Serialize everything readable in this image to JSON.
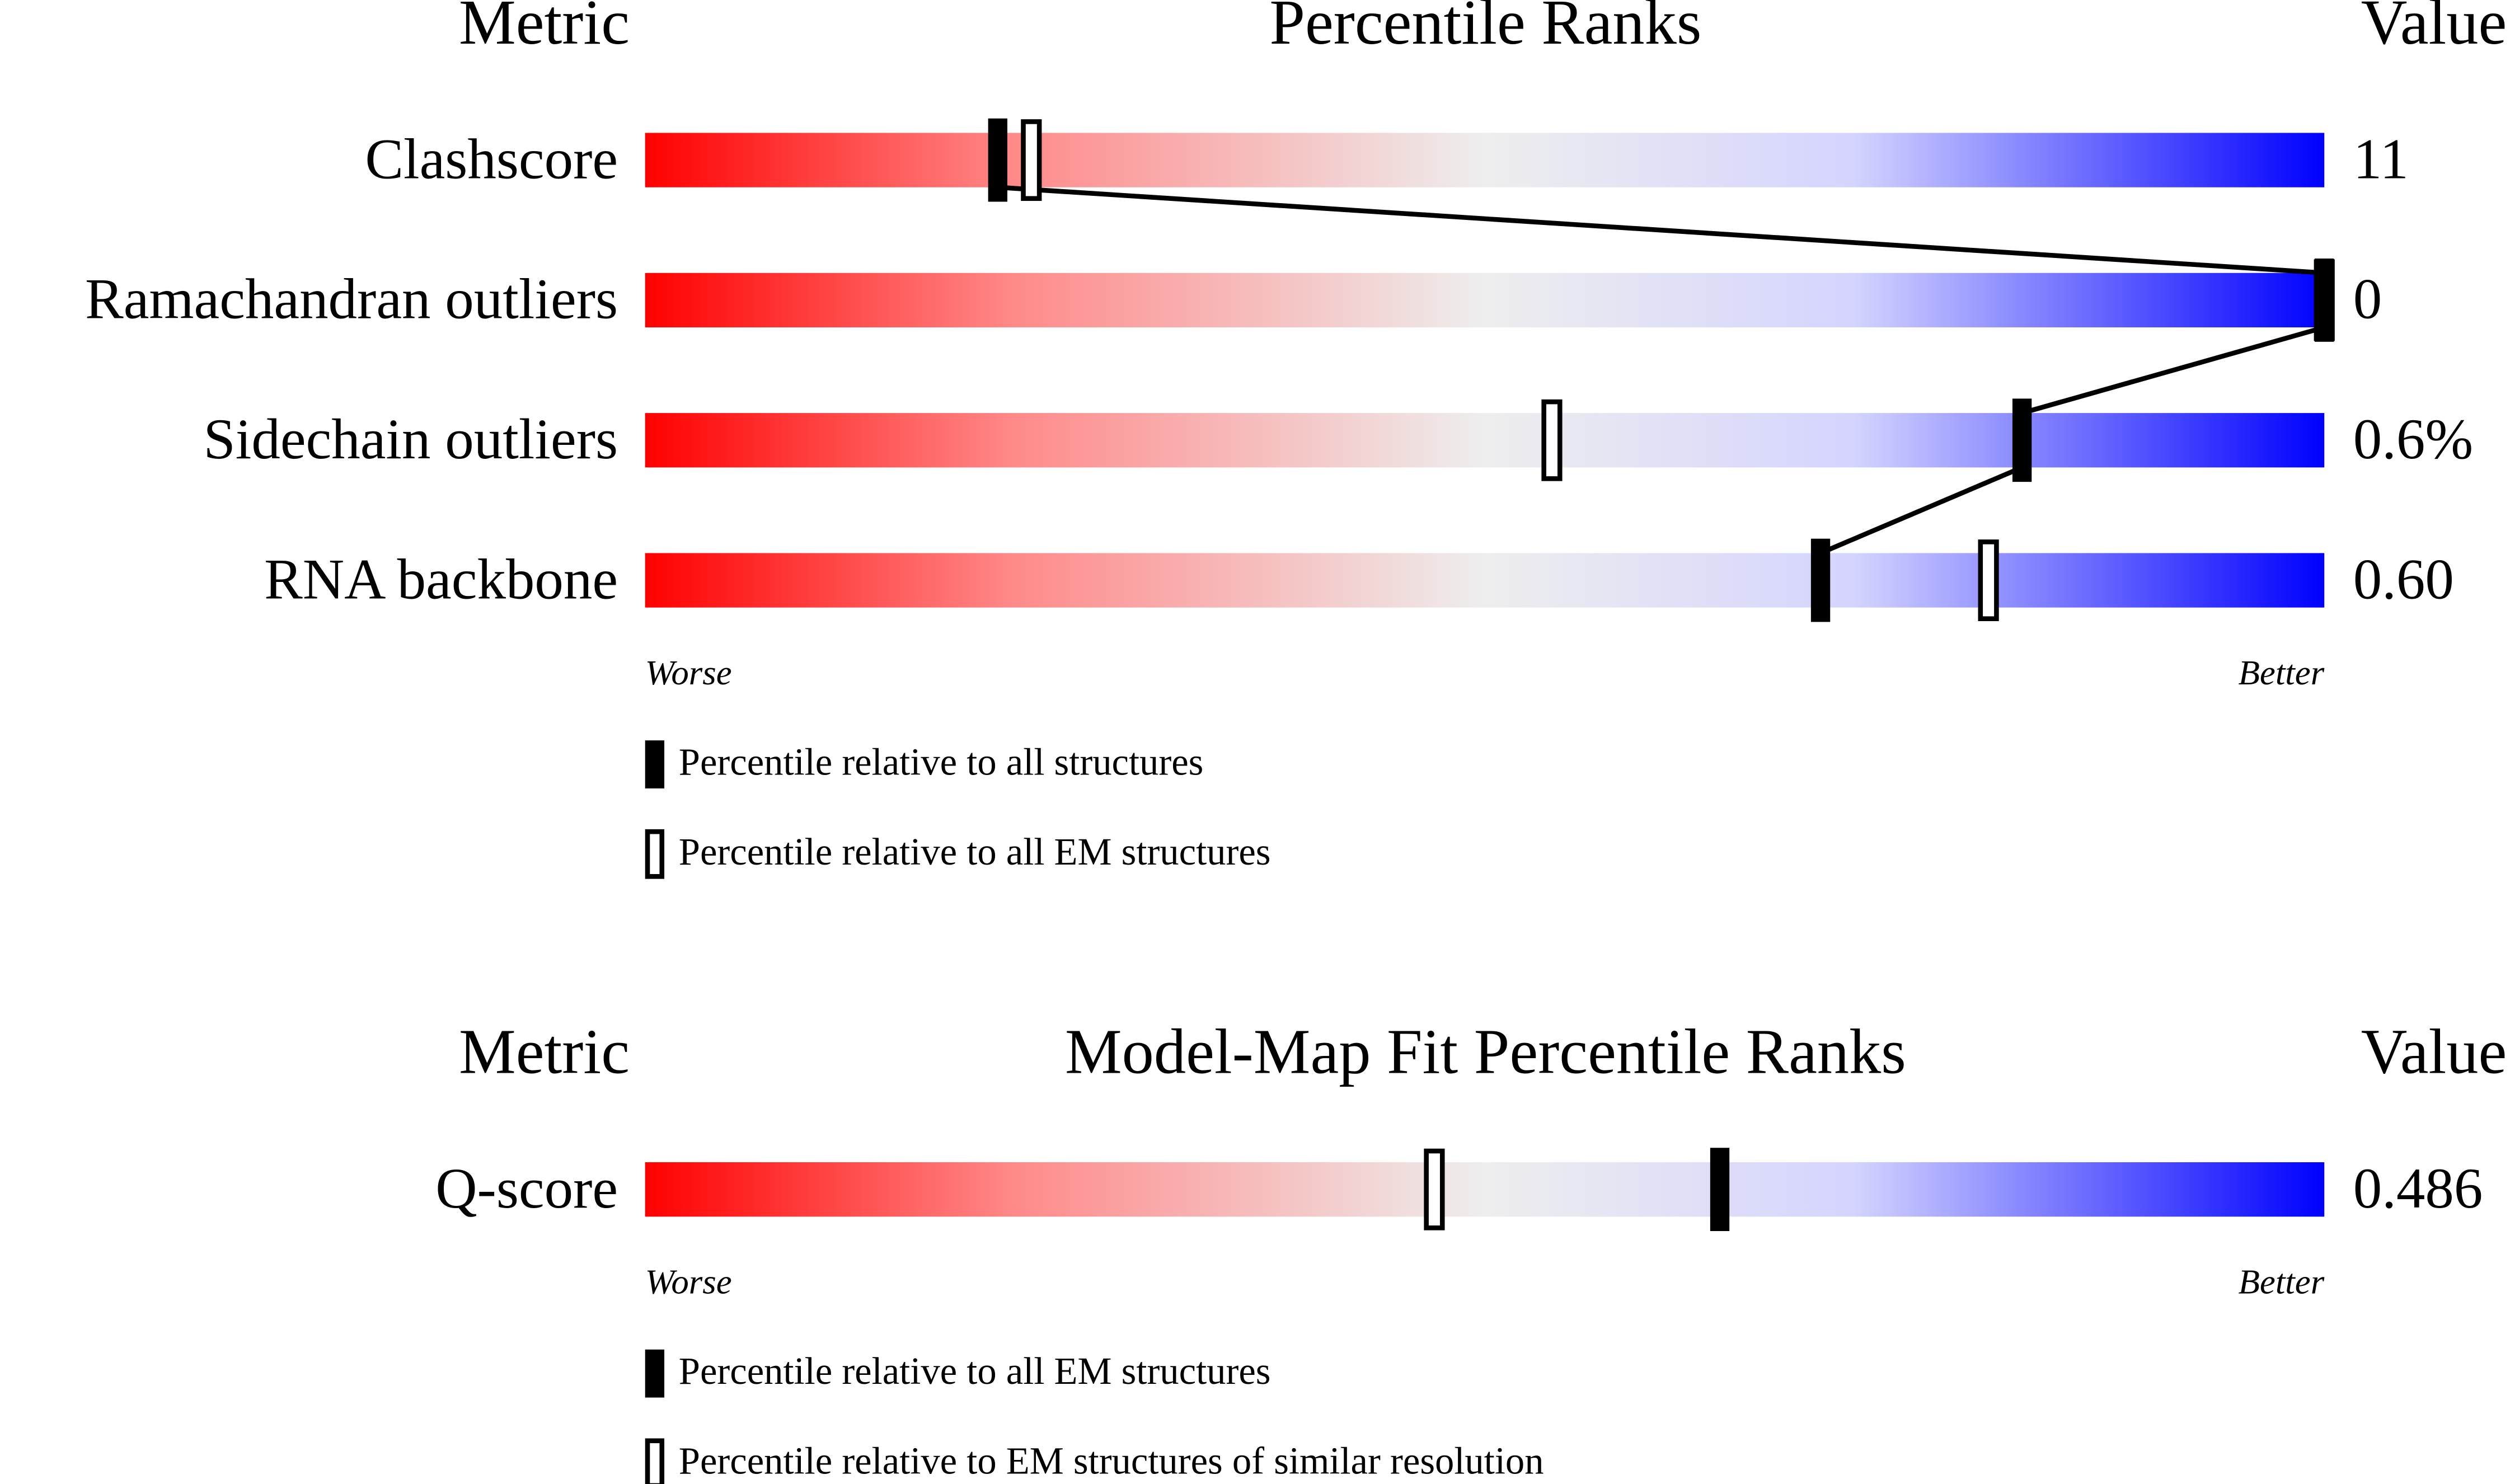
{
  "chart_data": [
    {
      "type": "percentile-slider",
      "metric_header": "Metric",
      "title": "Percentile Ranks",
      "value_header": "Value",
      "categories": [
        "Clashscore",
        "Ramachandran outliers",
        "Sidechain outliers",
        "RNA backbone"
      ],
      "metric_values": [
        "11",
        "0",
        "0.6%",
        "0.60"
      ],
      "series": [
        {
          "name": "Percentile relative to all structures",
          "color": "#000000",
          "style": "filled",
          "connected": true,
          "values": [
            21,
            100,
            82,
            70
          ]
        },
        {
          "name": "Percentile relative to all EM structures",
          "color": "#000000",
          "style": "open",
          "values": [
            23,
            100,
            54,
            80
          ]
        }
      ],
      "xlim": [
        0,
        100
      ],
      "low_label": "Worse",
      "high_label": "Better"
    },
    {
      "type": "percentile-slider",
      "metric_header": "Metric",
      "title": "Model-Map Fit Percentile Ranks",
      "value_header": "Value",
      "categories": [
        "Q-score"
      ],
      "metric_values": [
        "0.486"
      ],
      "series": [
        {
          "name": "Percentile relative to all EM structures",
          "color": "#000000",
          "style": "filled",
          "values": [
            64
          ]
        },
        {
          "name": "Percentile relative to EM structures of similar resolution",
          "color": "#000000",
          "style": "open",
          "values": [
            47
          ]
        }
      ],
      "xlim": [
        0,
        100
      ],
      "low_label": "Worse",
      "high_label": "Better"
    }
  ]
}
